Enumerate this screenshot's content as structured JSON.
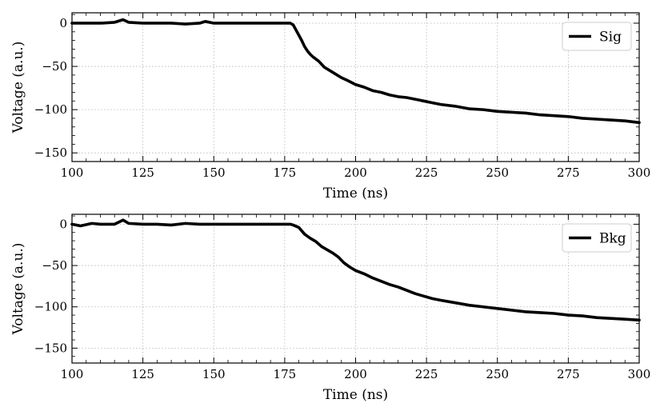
{
  "chart_data": [
    {
      "type": "line",
      "xlabel": "Time (ns)",
      "ylabel": "Voltage (a.u.)",
      "xlim": [
        100,
        300
      ],
      "ylim": [
        -160,
        12
      ],
      "xticks": [
        100,
        125,
        150,
        175,
        200,
        225,
        250,
        275,
        300
      ],
      "yticks": [
        0,
        -50,
        -100,
        -150
      ],
      "xtick_labels": [
        "100",
        "125",
        "150",
        "175",
        "200",
        "225",
        "250",
        "275",
        "300"
      ],
      "ytick_labels": [
        "0",
        "−50",
        "−100",
        "−150"
      ],
      "grid": true,
      "legend": "top-right",
      "series": [
        {
          "name": "Sig",
          "color": "#000000",
          "x": [
            100,
            105,
            110,
            115,
            118,
            120,
            125,
            130,
            135,
            140,
            145,
            147,
            150,
            155,
            160,
            165,
            170,
            175,
            177,
            178,
            179,
            180,
            181,
            182,
            183,
            184,
            185,
            187,
            189,
            191,
            193,
            195,
            197,
            200,
            203,
            206,
            209,
            212,
            215,
            218,
            221,
            224,
            227,
            230,
            235,
            240,
            245,
            250,
            255,
            260,
            265,
            270,
            275,
            280,
            285,
            290,
            295,
            300
          ],
          "y": [
            0,
            0,
            0,
            1,
            4,
            1,
            0,
            0,
            0,
            -1,
            0,
            2,
            0,
            0,
            0,
            0,
            0,
            0,
            0,
            -2,
            -8,
            -14,
            -20,
            -27,
            -32,
            -36,
            -39,
            -44,
            -51,
            -55,
            -59,
            -63,
            -66,
            -71,
            -74,
            -78,
            -80,
            -83,
            -85,
            -86,
            -88,
            -90,
            -92,
            -94,
            -96,
            -99,
            -100,
            -102,
            -103,
            -104,
            -106,
            -107,
            -108,
            -110,
            -111,
            -112,
            -113,
            -115
          ]
        }
      ]
    },
    {
      "type": "line",
      "xlabel": "Time (ns)",
      "ylabel": "Voltage (a.u.)",
      "xlim": [
        100,
        300
      ],
      "ylim": [
        -168,
        12
      ],
      "xticks": [
        100,
        125,
        150,
        175,
        200,
        225,
        250,
        275,
        300
      ],
      "yticks": [
        0,
        -50,
        -100,
        -150
      ],
      "xtick_labels": [
        "100",
        "125",
        "150",
        "175",
        "200",
        "225",
        "250",
        "275",
        "300"
      ],
      "ytick_labels": [
        "0",
        "−50",
        "−100",
        "−150"
      ],
      "grid": true,
      "legend": "top-right",
      "series": [
        {
          "name": "Bkg",
          "color": "#000000",
          "x": [
            100,
            103,
            107,
            110,
            115,
            118,
            120,
            125,
            130,
            135,
            140,
            145,
            150,
            155,
            160,
            165,
            170,
            175,
            177,
            178,
            180,
            182,
            184,
            186,
            188,
            190,
            192,
            194,
            196,
            198,
            200,
            203,
            206,
            209,
            212,
            215,
            218,
            221,
            224,
            227,
            230,
            235,
            240,
            245,
            250,
            255,
            260,
            265,
            270,
            275,
            280,
            285,
            290,
            295,
            300
          ],
          "y": [
            0,
            -2,
            1,
            0,
            0,
            5,
            1,
            0,
            0,
            -1,
            1,
            0,
            0,
            0,
            0,
            0,
            0,
            0,
            0,
            -1,
            -4,
            -12,
            -17,
            -21,
            -27,
            -31,
            -35,
            -40,
            -47,
            -52,
            -56,
            -60,
            -65,
            -69,
            -73,
            -76,
            -80,
            -84,
            -87,
            -90,
            -92,
            -95,
            -98,
            -100,
            -102,
            -104,
            -106,
            -107,
            -108,
            -110,
            -111,
            -113,
            -114,
            -115,
            -116
          ]
        }
      ]
    }
  ]
}
